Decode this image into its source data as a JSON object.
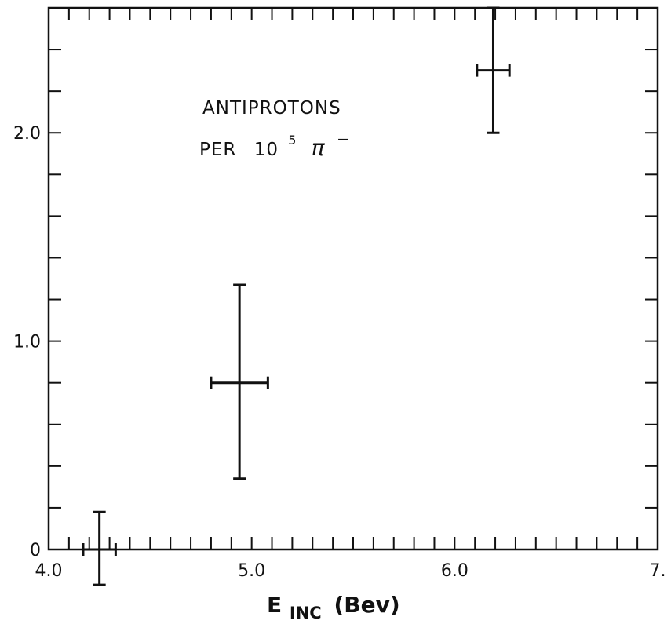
{
  "chart_data": {
    "type": "scatter",
    "title": "",
    "xlabel": "E",
    "xlabel_subscript": "INC",
    "xlabel_unit": "(Bev)",
    "ylabel": "",
    "xlim": [
      4.0,
      7.0
    ],
    "ylim": [
      0,
      2.6
    ],
    "x_tick_labels": [
      {
        "value": 4.0,
        "label": "4.0"
      },
      {
        "value": 5.0,
        "label": "5.0"
      },
      {
        "value": 6.0,
        "label": "6.0"
      },
      {
        "value": 7.0,
        "label": "7."
      }
    ],
    "y_tick_labels": [
      {
        "value": 0,
        "label": "0"
      },
      {
        "value": 1.0,
        "label": "1.0"
      },
      {
        "value": 2.0,
        "label": "2.0"
      }
    ],
    "x_minor_step": 0.1,
    "y_minor_step": 0.2,
    "grid": false,
    "annotation": {
      "line1": "ANTIPROTONS",
      "line2_prefix": "PER",
      "line2_base": "10",
      "line2_exponent": "5",
      "line2_symbol": "π",
      "line2_superscript": "−"
    },
    "points": [
      {
        "x": 4.25,
        "y": 0.0,
        "x_err": 0.08,
        "y_err_low": 0.17,
        "y_err_high": 0.18
      },
      {
        "x": 4.94,
        "y": 0.8,
        "x_err": 0.14,
        "y_err_low": 0.46,
        "y_err_high": 0.47
      },
      {
        "x": 6.19,
        "y": 2.3,
        "x_err": 0.08,
        "y_err_low": 0.3,
        "y_err_high": 0.3
      }
    ]
  }
}
